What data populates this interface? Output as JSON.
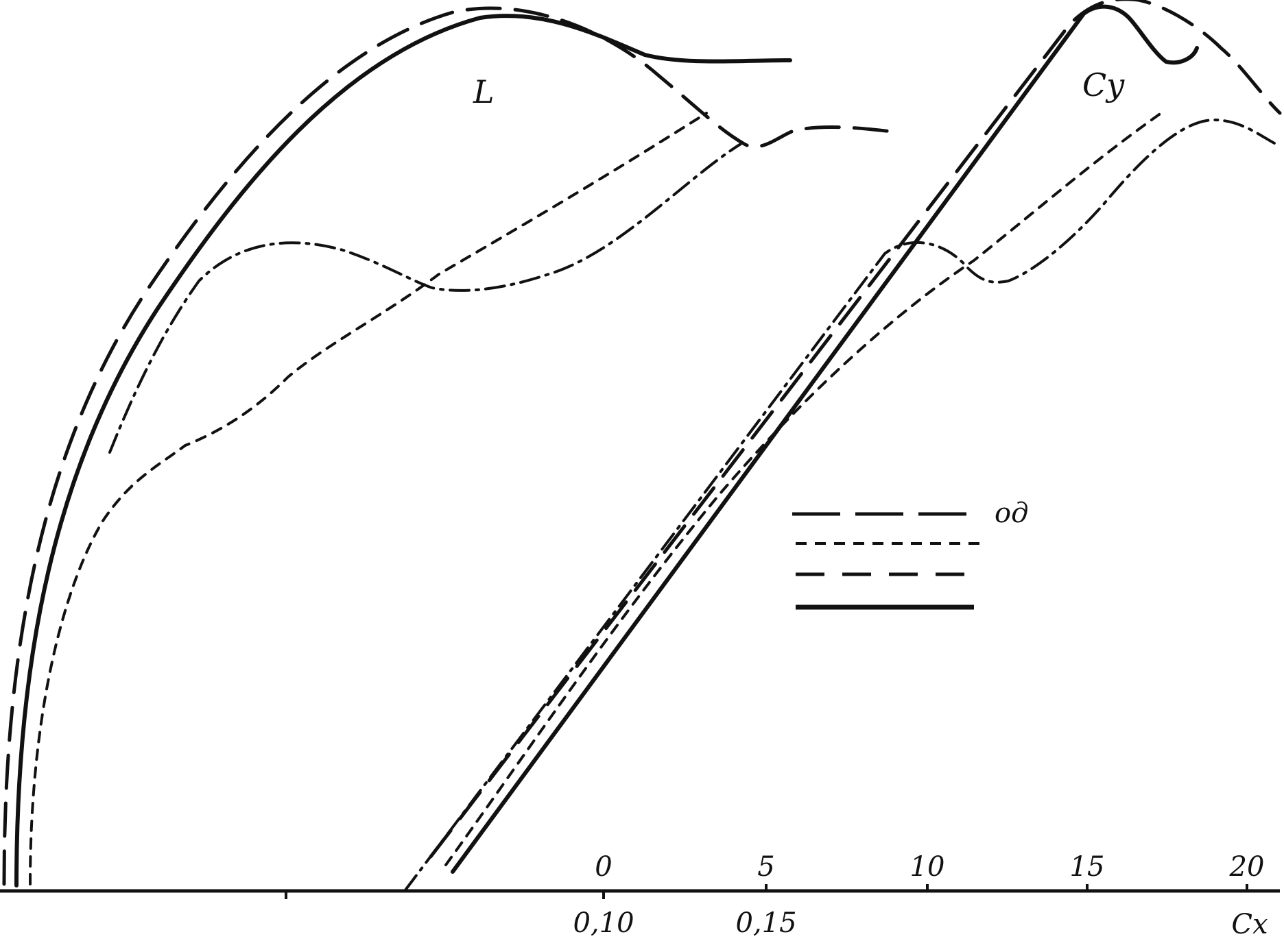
{
  "chart_data": {
    "type": "line",
    "title": "",
    "axes": {
      "alpha": {
        "ticks": [
          0,
          5,
          10,
          15,
          20
        ],
        "tick_labels": [
          "0",
          "5",
          "10",
          "15",
          "20"
        ]
      },
      "cx": {
        "ticks": [
          0.1,
          0.15
        ],
        "tick_labels": [
          "0,10",
          "0,15"
        ],
        "label": "Cx"
      }
    },
    "curve_labels": {
      "polar": "L",
      "lift": "Cy"
    },
    "legend": {
      "placement": "right-middle",
      "entries": [
        {
          "style": "long-dash",
          "text": "од"
        },
        {
          "style": "short-dash",
          "text": ""
        },
        {
          "style": "medium-dash",
          "text": ""
        },
        {
          "style": "solid",
          "text": ""
        }
      ]
    },
    "series_styles": [
      "solid",
      "long-dash",
      "short-dash",
      "dash-dot"
    ],
    "grid": false
  }
}
